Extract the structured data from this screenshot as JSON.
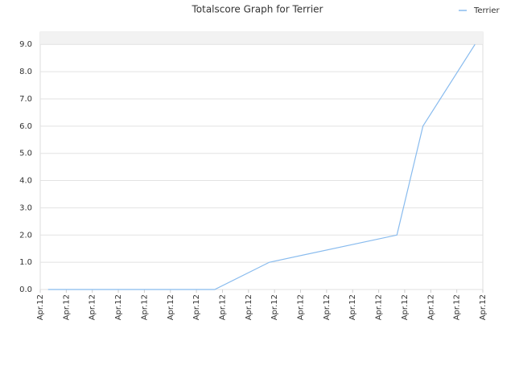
{
  "chart_data": {
    "type": "line",
    "title": "Totalscore Graph for Terrier",
    "x": [
      0.3,
      6.7,
      8.8,
      13.7,
      14.7,
      16.7
    ],
    "series": [
      {
        "name": "Terrier",
        "color": "#88bbee",
        "values": [
          0,
          0,
          1,
          2,
          6,
          9
        ]
      }
    ],
    "xlim": [
      0,
      17
    ],
    "xticks": [
      {
        "value": 0,
        "label": "Apr.12"
      },
      {
        "value": 1,
        "label": "Apr.12"
      },
      {
        "value": 2,
        "label": "Apr.12"
      },
      {
        "value": 3,
        "label": "Apr.12"
      },
      {
        "value": 4,
        "label": "Apr.12"
      },
      {
        "value": 5,
        "label": "Apr.12"
      },
      {
        "value": 6,
        "label": "Apr.12"
      },
      {
        "value": 7,
        "label": "Apr.12"
      },
      {
        "value": 8,
        "label": "Apr.12"
      },
      {
        "value": 9,
        "label": "Apr.12"
      },
      {
        "value": 10,
        "label": "Apr.12"
      },
      {
        "value": 11,
        "label": "Apr.12"
      },
      {
        "value": 12,
        "label": "Apr.12"
      },
      {
        "value": 13,
        "label": "Apr.12"
      },
      {
        "value": 14,
        "label": "Apr.12"
      },
      {
        "value": 15,
        "label": "Apr.12"
      },
      {
        "value": 16,
        "label": "Apr.12"
      },
      {
        "value": 17,
        "label": "Apr.12"
      }
    ],
    "ylim": [
      0,
      9.45
    ],
    "yticks": [
      {
        "value": 0,
        "label": "0.0"
      },
      {
        "value": 1,
        "label": "1.0"
      },
      {
        "value": 2,
        "label": "2.0"
      },
      {
        "value": 3,
        "label": "3.0"
      },
      {
        "value": 4,
        "label": "4.0"
      },
      {
        "value": 5,
        "label": "5.0"
      },
      {
        "value": 6,
        "label": "6.0"
      },
      {
        "value": 7,
        "label": "7.0"
      },
      {
        "value": 8,
        "label": "8.0"
      },
      {
        "value": 9,
        "label": "9.0"
      }
    ],
    "grid": true,
    "legend": "top-right"
  }
}
